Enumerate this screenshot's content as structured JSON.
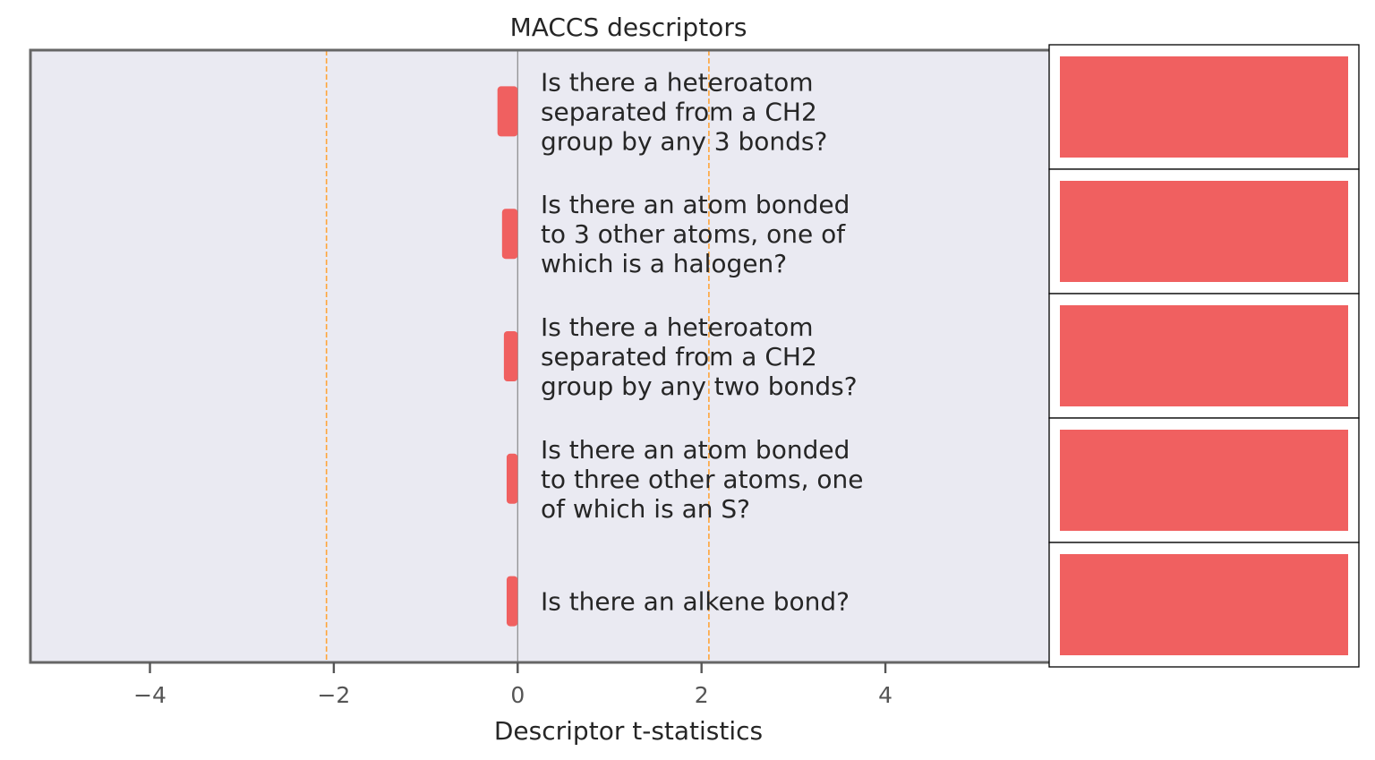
{
  "chart_data": {
    "type": "bar",
    "orientation": "horizontal",
    "title": "MACCS descriptors",
    "xlabel": "Descriptor t-statistics",
    "xlim": [
      -5.3,
      6.2
    ],
    "xticks": [
      -4,
      -2,
      0,
      2,
      4
    ],
    "xtick_labels": [
      "−4",
      "−2",
      "0",
      "2",
      "4"
    ],
    "threshold_lines": [
      -2.08,
      2.08
    ],
    "categories": [
      [
        "Is there a heteroatom",
        "separated from a CH2",
        "group by any 3 bonds?"
      ],
      [
        "Is there an atom bonded",
        "to 3 other atoms, one of",
        "which is a halogen?"
      ],
      [
        "Is there a heteroatom",
        "separated from a CH2",
        "group by any two bonds?"
      ],
      [
        "Is there an atom bonded",
        "to three other atoms, one",
        "of which is an S?"
      ],
      [
        "Is there an alkene bond?"
      ]
    ],
    "values": [
      -0.22,
      -0.17,
      -0.15,
      -0.12,
      -0.12
    ],
    "grid": false,
    "colors": {
      "bar": "#f06060",
      "plot_background": "#eaeaf2",
      "frame": "#666666",
      "threshold": "#ffa53a",
      "zero_line": "#8a8a8a",
      "swatch": "#f06060"
    }
  }
}
